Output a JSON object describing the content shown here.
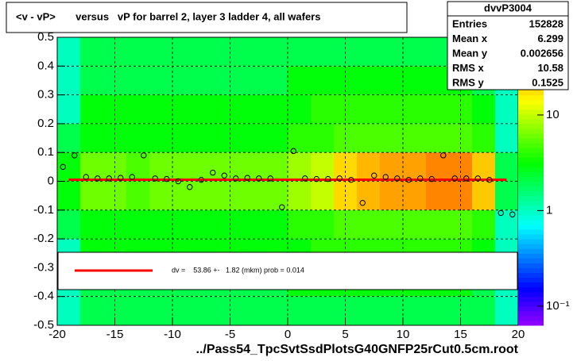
{
  "chart_data": {
    "type": "profile2d",
    "title": "<v - vP>       versus   vP for barrel 2, layer 3 ladder 4, all wafers",
    "x_label": "../Pass54_TpcSvtSsdPlotsG40GNFP25rCut0.5cm.root",
    "xlim": [
      -20,
      20
    ],
    "xticks": [
      -20,
      -15,
      -10,
      -5,
      0,
      5,
      10,
      15,
      20
    ],
    "ylim": [
      -0.5,
      0.5
    ],
    "yticks": [
      -0.5,
      -0.4,
      -0.3,
      -0.2,
      -0.1,
      0,
      0.1,
      0.2,
      0.3,
      0.4,
      0.5
    ],
    "grid": true,
    "zlim": [
      0.063,
      65
    ],
    "zscale": "log",
    "zticks": [
      10,
      1,
      {
        "value": 0.1,
        "label": "10⁻¹"
      }
    ],
    "bins_x": [
      -20,
      -18,
      -16,
      -14,
      -12,
      -10,
      -8,
      -6,
      -4,
      -2,
      0,
      2,
      4,
      6,
      8,
      10,
      12,
      14,
      16,
      18,
      20
    ],
    "bins_y": [
      -0.5,
      -0.4,
      -0.3,
      -0.2,
      -0.1,
      0,
      0.1,
      0.2,
      0.3,
      0.4,
      0.5
    ],
    "counts": [
      [
        1,
        2,
        2,
        2,
        2,
        2,
        2,
        2,
        2,
        2,
        2,
        2,
        2,
        2,
        2,
        2,
        2,
        2,
        2,
        1
      ],
      [
        1,
        2,
        2,
        2,
        2,
        2,
        2,
        2,
        2,
        2,
        3,
        3,
        3,
        3,
        3,
        3,
        3,
        3,
        2,
        1
      ],
      [
        1,
        3,
        3,
        3,
        3,
        3,
        3,
        3,
        3,
        3,
        3,
        4,
        4,
        4,
        4,
        4,
        4,
        4,
        3,
        1
      ],
      [
        2,
        3,
        3,
        3,
        3,
        3,
        3,
        3,
        3,
        3,
        4,
        4,
        5,
        5,
        5,
        5,
        5,
        5,
        4,
        1
      ],
      [
        3,
        6,
        6,
        5,
        6,
        6,
        6,
        6,
        6,
        6,
        8,
        10,
        18,
        22,
        25,
        25,
        30,
        30,
        20,
        2
      ],
      [
        3,
        6,
        6,
        5,
        6,
        6,
        6,
        6,
        6,
        6,
        8,
        10,
        18,
        22,
        25,
        25,
        30,
        30,
        20,
        2
      ],
      [
        2,
        3,
        3,
        3,
        3,
        3,
        3,
        3,
        3,
        3,
        4,
        4,
        5,
        5,
        5,
        5,
        5,
        5,
        4,
        1
      ],
      [
        1,
        3,
        3,
        3,
        3,
        3,
        3,
        3,
        3,
        3,
        3,
        4,
        4,
        4,
        4,
        4,
        4,
        4,
        3,
        1
      ],
      [
        1,
        2,
        2,
        2,
        2,
        2,
        2,
        2,
        2,
        2,
        3,
        3,
        3,
        3,
        3,
        3,
        3,
        3,
        2,
        1
      ],
      [
        1,
        2,
        2,
        2,
        2,
        2,
        2,
        2,
        2,
        2,
        2,
        2,
        2,
        2,
        2,
        2,
        2,
        2,
        2,
        1
      ]
    ],
    "profile": {
      "color": "#000000",
      "x": [
        -19.5,
        -18.5,
        -17.5,
        -16.5,
        -15.5,
        -14.5,
        -13.5,
        -12.5,
        -11.5,
        -10.5,
        -9.5,
        -8.5,
        -7.5,
        -6.5,
        -5.5,
        -4.5,
        -3.5,
        -2.5,
        -1.5,
        -0.5,
        0.5,
        1.5,
        2.5,
        3.5,
        4.5,
        5.5,
        6.5,
        7.5,
        8.5,
        9.5,
        10.5,
        11.5,
        12.5,
        13.5,
        14.5,
        15.5,
        16.5,
        17.5,
        18.5,
        19.5
      ],
      "values": [
        0.05,
        0.09,
        0.015,
        0.01,
        0.01,
        0.012,
        0.015,
        0.09,
        0.01,
        0.008,
        0.0,
        -0.02,
        0.005,
        0.03,
        0.02,
        0.01,
        0.012,
        0.01,
        0.01,
        -0.09,
        0.105,
        0.01,
        0.008,
        0.008,
        0.01,
        0.005,
        -0.075,
        0.02,
        0.015,
        0.01,
        0.005,
        0.01,
        0.008,
        0.09,
        0.01,
        0.01,
        0.01,
        0.005,
        -0.11,
        -0.115
      ]
    },
    "fit": {
      "value": 0.005386,
      "color": "#ff0000",
      "label": "dv =    53.86 +-   1.82 (mkm) prob = 0.014"
    },
    "stats": {
      "title": "dvvP3004",
      "rows": [
        {
          "label": "Entries",
          "value": 152828
        },
        {
          "label": "Mean x",
          "value": 6.299
        },
        {
          "label": "Mean y",
          "value": 0.002656
        },
        {
          "label": "RMS x",
          "value": 10.58
        },
        {
          "label": "RMS y",
          "value": 0.1525
        }
      ]
    }
  }
}
